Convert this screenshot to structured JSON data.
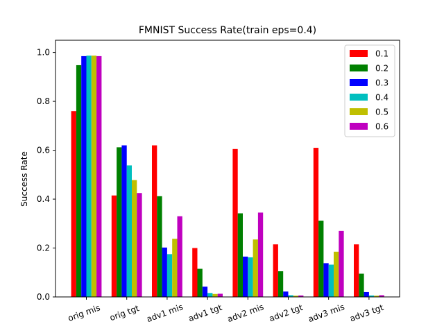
{
  "chart_data": {
    "type": "bar",
    "title": "FMNIST Success Rate(train eps=0.4)",
    "xlabel": "",
    "ylabel": "Success Rate",
    "ylim": [
      0,
      1.05
    ],
    "yticks": [
      "0.0",
      "0.2",
      "0.4",
      "0.6",
      "0.8",
      "1.0"
    ],
    "categories": [
      "orig mis",
      "orig tgt",
      "adv1 mis",
      "adv1 tgt",
      "adv2 mis",
      "adv2 tgt",
      "adv3 mis",
      "adv3 tgt"
    ],
    "legend_position": "top-right",
    "grid": false,
    "series": [
      {
        "name": "0.1",
        "color": "#ff0000",
        "values": [
          0.76,
          0.415,
          0.62,
          0.2,
          0.605,
          0.215,
          0.61,
          0.215
        ]
      },
      {
        "name": "0.2",
        "color": "#008000",
        "values": [
          0.948,
          0.612,
          0.412,
          0.115,
          0.342,
          0.105,
          0.312,
          0.095
        ]
      },
      {
        "name": "0.3",
        "color": "#0000ff",
        "values": [
          0.985,
          0.62,
          0.202,
          0.042,
          0.165,
          0.022,
          0.138,
          0.02
        ]
      },
      {
        "name": "0.4",
        "color": "#00bfbf",
        "values": [
          0.987,
          0.538,
          0.175,
          0.016,
          0.162,
          0.007,
          0.132,
          0.006
        ]
      },
      {
        "name": "0.5",
        "color": "#bfbf00",
        "values": [
          0.987,
          0.478,
          0.238,
          0.012,
          0.235,
          0.005,
          0.185,
          0.005
        ]
      },
      {
        "name": "0.6",
        "color": "#bf00bf",
        "values": [
          0.985,
          0.425,
          0.33,
          0.013,
          0.345,
          0.006,
          0.27,
          0.007
        ]
      }
    ]
  }
}
